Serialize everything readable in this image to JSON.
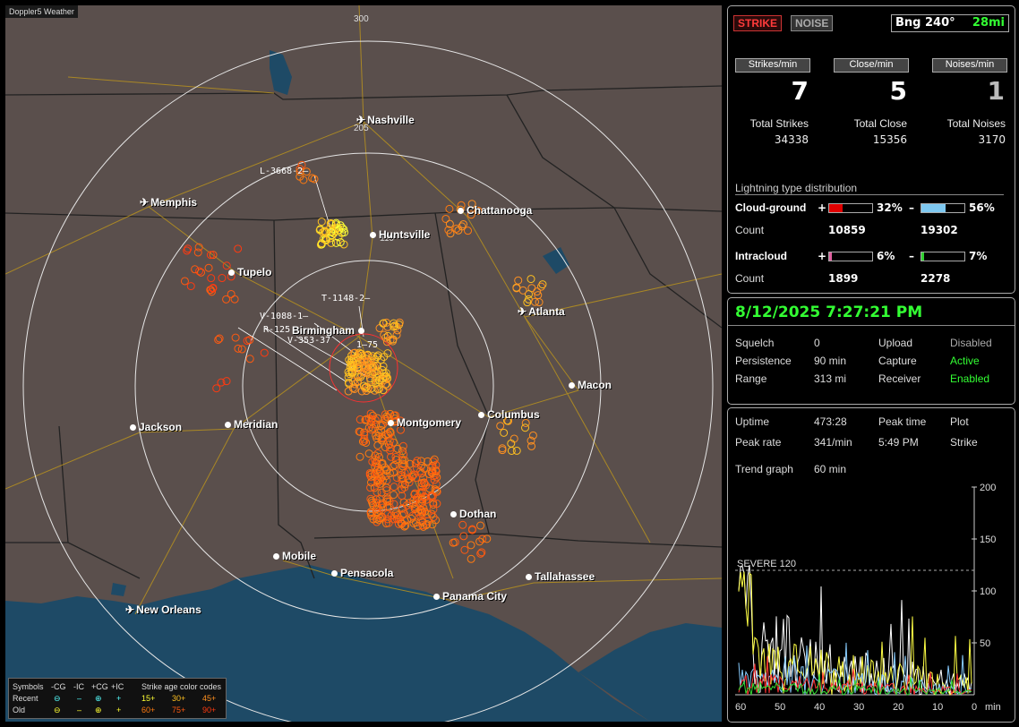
{
  "app": {
    "title": "Doppler5 Weather"
  },
  "map": {
    "colors": {
      "land": "#5a4f4c",
      "water": "#1e4a66",
      "border": "#222",
      "roads": "#b8921e",
      "rings": "#e6e6e6"
    },
    "ring_labels": [
      "300",
      "205",
      "110"
    ],
    "cities": [
      {
        "name": "Nashville",
        "type": "airport"
      },
      {
        "name": "Memphis",
        "type": "airport"
      },
      {
        "name": "Chattanooga",
        "type": "city"
      },
      {
        "name": "Huntsville",
        "type": "city"
      },
      {
        "name": "Tupelo",
        "type": "city"
      },
      {
        "name": "Atlanta",
        "type": "airport"
      },
      {
        "name": "Birmingham",
        "type": "city"
      },
      {
        "name": "Macon",
        "type": "city"
      },
      {
        "name": "Jackson",
        "type": "city"
      },
      {
        "name": "Meridian",
        "type": "city"
      },
      {
        "name": "Montgomery",
        "type": "city"
      },
      {
        "name": "Columbus",
        "type": "city"
      },
      {
        "name": "Dothan",
        "type": "city"
      },
      {
        "name": "Mobile",
        "type": "city"
      },
      {
        "name": "Pensacola",
        "type": "city"
      },
      {
        "name": "Tallahassee",
        "type": "city"
      },
      {
        "name": "Panama City",
        "type": "city"
      },
      {
        "name": "New Orleans",
        "type": "airport"
      }
    ],
    "storm_labels": [
      "L-3668-2–",
      "T-1148-2–",
      "V-1088-1–",
      "R-125",
      "V-353-37",
      "1–75"
    ],
    "legend": {
      "symbols_label": "Symbols",
      "cg_neg": "-CG",
      "ic_neg": "-IC",
      "cg_pos": "+CG",
      "ic_pos": "+IC",
      "age_label": "Strike age color codes",
      "recent_label": "Recent",
      "old_label": "Old",
      "recent_ages": [
        "15+",
        "30+",
        "45+"
      ],
      "old_ages": [
        "60+",
        "75+",
        "90+"
      ],
      "age_colors": [
        "#ffff33",
        "#ffc020",
        "#ff9020",
        "#ff7a10",
        "#ff5a10",
        "#ff3a10"
      ]
    }
  },
  "panel": {
    "strike_button": "STRIKE",
    "noise_button": "NOISE",
    "bearing": "Bng 240°",
    "distance": "28mi",
    "rates": [
      {
        "header": "Strikes/min",
        "value": "7",
        "total_label": "Total Strikes",
        "total": "34338"
      },
      {
        "header": "Close/min",
        "value": "5",
        "total_label": "Total Close",
        "total": "15356"
      },
      {
        "header": "Noises/min",
        "value": "1",
        "total_label": "Total Noises",
        "total": "3170"
      }
    ],
    "dist_title": "Lightning type distribution",
    "cloud_ground": {
      "label": "Cloud-ground",
      "pos_sign": "+",
      "pos_pct": "32%",
      "pos_frac": 0.32,
      "neg_sign": "–",
      "neg_pct": "56%",
      "neg_frac": 0.56,
      "count_label": "Count",
      "pos_count": "10859",
      "neg_count": "19302",
      "pos_color": "#e00000",
      "neg_color": "#7ec8f0"
    },
    "intracloud": {
      "label": "Intracloud",
      "pos_sign": "+",
      "pos_pct": "6%",
      "pos_frac": 0.06,
      "neg_sign": "–",
      "neg_pct": "7%",
      "neg_frac": 0.07,
      "count_label": "Count",
      "pos_count": "1899",
      "neg_count": "2278",
      "pos_color": "#e060a0",
      "neg_color": "#30d030"
    }
  },
  "status": {
    "datetime": "8/12/2025 7:27:21 PM",
    "squelch_label": "Squelch",
    "squelch": "0",
    "persistence_label": "Persistence",
    "persistence": "90 min",
    "range_label": "Range",
    "range": "313 mi",
    "upload_label": "Upload",
    "upload": "Disabled",
    "capture_label": "Capture",
    "capture": "Active",
    "receiver_label": "Receiver",
    "receiver": "Enabled"
  },
  "stats": {
    "uptime_label": "Uptime",
    "uptime": "473:28",
    "peak_time_label": "Peak time",
    "peak_time": "5:49 PM",
    "plot_label": "Plot",
    "plot": "Strike",
    "peak_rate_label": "Peak rate",
    "peak_rate": "341/min",
    "trend_label": "Trend graph",
    "trend": "60 min",
    "severe_label": "SEVERE 120",
    "y_ticks": [
      "200",
      "150",
      "100",
      "50"
    ],
    "x_ticks": [
      "60",
      "50",
      "40",
      "30",
      "20",
      "10",
      "0"
    ],
    "x_unit": "min"
  }
}
